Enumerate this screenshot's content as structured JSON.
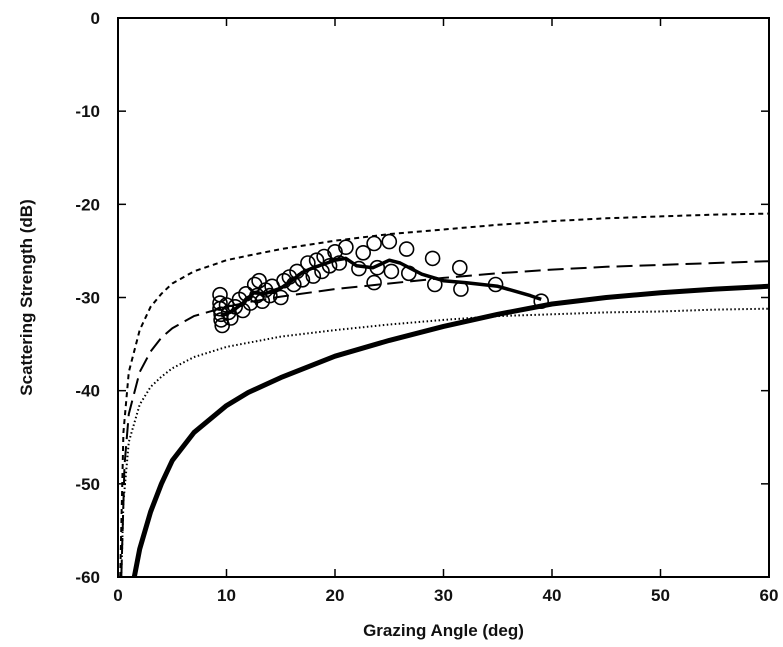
{
  "chart_data": {
    "type": "line",
    "title": "",
    "xlabel": "Grazing Angle (deg)",
    "ylabel": "Scattering Strength (dB)",
    "xlim": [
      0,
      60
    ],
    "ylim": [
      -60,
      0
    ],
    "xticks": [
      0,
      10,
      20,
      30,
      40,
      50,
      60
    ],
    "yticks": [
      0,
      -10,
      -20,
      -30,
      -40,
      -50,
      -60
    ],
    "grid": false,
    "legend": "none",
    "series": [
      {
        "style": "short-dashed",
        "points": [
          [
            0.2,
            -60
          ],
          [
            0.5,
            -44.5
          ],
          [
            1,
            -38
          ],
          [
            2,
            -33.5
          ],
          [
            3,
            -31
          ],
          [
            4,
            -29.6
          ],
          [
            5,
            -28.5
          ],
          [
            7,
            -27.2
          ],
          [
            10,
            -26
          ],
          [
            12,
            -25.5
          ],
          [
            15,
            -24.8
          ],
          [
            20,
            -23.9
          ],
          [
            25,
            -23.2
          ],
          [
            30,
            -22.7
          ],
          [
            35,
            -22.2
          ],
          [
            40,
            -21.8
          ],
          [
            45,
            -21.5
          ],
          [
            50,
            -21.3
          ],
          [
            55,
            -21.1
          ],
          [
            60,
            -21
          ]
        ]
      },
      {
        "style": "long-dashed",
        "points": [
          [
            0.3,
            -60
          ],
          [
            0.6,
            -48
          ],
          [
            1,
            -42.5
          ],
          [
            2,
            -38
          ],
          [
            3,
            -35.8
          ],
          [
            4,
            -34.3
          ],
          [
            5,
            -33.3
          ],
          [
            7,
            -32
          ],
          [
            10,
            -31
          ],
          [
            12,
            -30.5
          ],
          [
            15,
            -29.9
          ],
          [
            20,
            -29.1
          ],
          [
            25,
            -28.5
          ],
          [
            30,
            -27.9
          ],
          [
            35,
            -27.4
          ],
          [
            40,
            -27
          ],
          [
            45,
            -26.7
          ],
          [
            50,
            -26.5
          ],
          [
            55,
            -26.3
          ],
          [
            60,
            -26.1
          ]
        ]
      },
      {
        "style": "dotted",
        "points": [
          [
            0.3,
            -60
          ],
          [
            0.5,
            -52
          ],
          [
            1,
            -45.5
          ],
          [
            2,
            -41.5
          ],
          [
            3,
            -39.6
          ],
          [
            4,
            -38.5
          ],
          [
            5,
            -37.6
          ],
          [
            7,
            -36.4
          ],
          [
            10,
            -35.3
          ],
          [
            15,
            -34.2
          ],
          [
            20,
            -33.5
          ],
          [
            25,
            -32.9
          ],
          [
            30,
            -32.4
          ],
          [
            35,
            -32
          ],
          [
            40,
            -31.8
          ],
          [
            45,
            -31.6
          ],
          [
            50,
            -31.5
          ],
          [
            55,
            -31.3
          ],
          [
            60,
            -31.2
          ]
        ]
      },
      {
        "style": "thick-solid",
        "points": [
          [
            1.5,
            -60
          ],
          [
            2,
            -57
          ],
          [
            3,
            -53
          ],
          [
            4,
            -50
          ],
          [
            5,
            -47.5
          ],
          [
            7,
            -44.5
          ],
          [
            10,
            -41.6
          ],
          [
            12,
            -40.2
          ],
          [
            15,
            -38.6
          ],
          [
            20,
            -36.3
          ],
          [
            25,
            -34.6
          ],
          [
            30,
            -33.1
          ],
          [
            35,
            -31.8
          ],
          [
            40,
            -30.7
          ],
          [
            45,
            -30
          ],
          [
            50,
            -29.5
          ],
          [
            55,
            -29.1
          ],
          [
            60,
            -28.8
          ]
        ]
      },
      {
        "style": "medium-solid",
        "points": [
          [
            9.5,
            -32
          ],
          [
            10.5,
            -31.5
          ],
          [
            11.5,
            -30.6
          ],
          [
            12.5,
            -29.5
          ],
          [
            13.5,
            -29.6
          ],
          [
            15,
            -29
          ],
          [
            16,
            -28.2
          ],
          [
            17,
            -27.3
          ],
          [
            18,
            -26.8
          ],
          [
            19,
            -26.4
          ],
          [
            20,
            -26
          ],
          [
            21,
            -25.8
          ],
          [
            22,
            -26.6
          ],
          [
            23.5,
            -26.8
          ],
          [
            25,
            -26
          ],
          [
            26,
            -26.3
          ],
          [
            28,
            -27.5
          ],
          [
            30,
            -28.2
          ],
          [
            32,
            -28.4
          ],
          [
            35,
            -28.8
          ],
          [
            38,
            -29.8
          ],
          [
            39,
            -30.2
          ]
        ]
      }
    ],
    "measurements": [
      [
        9.4,
        -29.7
      ],
      [
        9.4,
        -30.6
      ],
      [
        9.4,
        -31.2
      ],
      [
        9.5,
        -31.8
      ],
      [
        9.5,
        -32.4
      ],
      [
        9.6,
        -33
      ],
      [
        10,
        -30.8
      ],
      [
        10.2,
        -31.6
      ],
      [
        10.4,
        -32.2
      ],
      [
        10.8,
        -31
      ],
      [
        11.2,
        -30.2
      ],
      [
        11.5,
        -31.4
      ],
      [
        11.8,
        -29.6
      ],
      [
        12.2,
        -30.6
      ],
      [
        12.6,
        -28.6
      ],
      [
        12.8,
        -29.8
      ],
      [
        13,
        -28.2
      ],
      [
        13.3,
        -30.4
      ],
      [
        13.6,
        -29.2
      ],
      [
        14,
        -29.8
      ],
      [
        14.2,
        -28.8
      ],
      [
        15,
        -30
      ],
      [
        15.3,
        -28.2
      ],
      [
        15.8,
        -27.8
      ],
      [
        16.2,
        -28.6
      ],
      [
        16.5,
        -27.2
      ],
      [
        17,
        -28.1
      ],
      [
        17.5,
        -26.3
      ],
      [
        18,
        -27.7
      ],
      [
        18.3,
        -26
      ],
      [
        18.8,
        -27.2
      ],
      [
        19,
        -25.6
      ],
      [
        19.5,
        -26.6
      ],
      [
        20,
        -25.1
      ],
      [
        20.4,
        -26.3
      ],
      [
        21,
        -24.6
      ],
      [
        22.2,
        -26.9
      ],
      [
        22.6,
        -25.2
      ],
      [
        23.6,
        -24.2
      ],
      [
        23.6,
        -28.4
      ],
      [
        23.9,
        -26.8
      ],
      [
        25,
        -24
      ],
      [
        25.2,
        -27.2
      ],
      [
        26.6,
        -24.8
      ],
      [
        26.8,
        -27.4
      ],
      [
        29,
        -25.8
      ],
      [
        29.2,
        -28.6
      ],
      [
        31.5,
        -26.8
      ],
      [
        31.6,
        -29.1
      ],
      [
        34.8,
        -28.6
      ],
      [
        39,
        -30.4
      ]
    ]
  }
}
